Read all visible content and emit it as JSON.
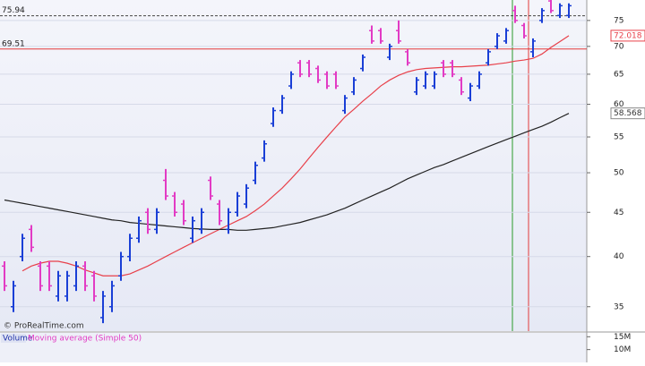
{
  "chart_data": {
    "type": "ohlc",
    "log_scale": true,
    "ylim": [
      32.8,
      79.2
    ],
    "yticks": [
      35,
      40,
      45,
      50,
      55,
      60,
      65,
      70,
      75
    ],
    "bars": [
      [
        39,
        39.5,
        36.5,
        37
      ],
      [
        35,
        37.5,
        34.5,
        37
      ],
      [
        40,
        42.5,
        39.5,
        42
      ],
      [
        43,
        43.5,
        40.5,
        41
      ],
      [
        39,
        39.5,
        36.5,
        37
      ],
      [
        39,
        39.5,
        36.5,
        37
      ],
      [
        36,
        38.5,
        35.5,
        38
      ],
      [
        36,
        38.5,
        35.5,
        38
      ],
      [
        37,
        39.5,
        36.5,
        39
      ],
      [
        39,
        39.5,
        36.5,
        37
      ],
      [
        38,
        38.5,
        35.5,
        36
      ],
      [
        34,
        36.5,
        33.5,
        36
      ],
      [
        35,
        37.5,
        34.5,
        37
      ],
      [
        38,
        40.5,
        37.5,
        40
      ],
      [
        40,
        42.5,
        39.5,
        42
      ],
      [
        42,
        44.5,
        41.5,
        44
      ],
      [
        45,
        45.5,
        42.5,
        43
      ],
      [
        43,
        45.5,
        42.5,
        45
      ],
      [
        49,
        50.5,
        46.5,
        47
      ],
      [
        47,
        47.5,
        44.5,
        45
      ],
      [
        46,
        46.5,
        43.5,
        44
      ],
      [
        42,
        44.5,
        41.5,
        44
      ],
      [
        43,
        45.5,
        42.5,
        45
      ],
      [
        49,
        49.5,
        46.5,
        47
      ],
      [
        46,
        46.5,
        43.5,
        44
      ],
      [
        43,
        45.5,
        42.5,
        45
      ],
      [
        45,
        47.5,
        44.5,
        47
      ],
      [
        46,
        48.5,
        45.5,
        48
      ],
      [
        49,
        51.5,
        48.5,
        51
      ],
      [
        52,
        54.5,
        51.5,
        54
      ],
      [
        57,
        59.5,
        56.5,
        59
      ],
      [
        59,
        61.5,
        58.5,
        61
      ],
      [
        63,
        65.5,
        62.5,
        65
      ],
      [
        67,
        67.5,
        64.5,
        65
      ],
      [
        67,
        67.5,
        64.5,
        65
      ],
      [
        66,
        66.5,
        63.5,
        64
      ],
      [
        65,
        65.5,
        62.5,
        63
      ],
      [
        65,
        65.5,
        62.5,
        63
      ],
      [
        59,
        61.5,
        58.5,
        61
      ],
      [
        62,
        64.5,
        61.5,
        64
      ],
      [
        66,
        68.5,
        65.5,
        68
      ],
      [
        73,
        74,
        70.5,
        71
      ],
      [
        73,
        73.5,
        70.5,
        71
      ],
      [
        68,
        70.5,
        67.5,
        70
      ],
      [
        73,
        75,
        70.5,
        71
      ],
      [
        69,
        69.5,
        66.5,
        67
      ],
      [
        62,
        64.5,
        61.5,
        64
      ],
      [
        63,
        65.5,
        62.5,
        65
      ],
      [
        63,
        65.5,
        62.5,
        65
      ],
      [
        67,
        67.5,
        64.5,
        65
      ],
      [
        67,
        67.5,
        64.5,
        65
      ],
      [
        64,
        64.5,
        61.5,
        62
      ],
      [
        61,
        63.5,
        60.5,
        63
      ],
      [
        63,
        65.5,
        62.5,
        65
      ],
      [
        67,
        69.5,
        66.5,
        69
      ],
      [
        70,
        72.5,
        69.5,
        72
      ],
      [
        71,
        73.5,
        70.5,
        73
      ],
      [
        77,
        78,
        74.5,
        75
      ],
      [
        74,
        74.5,
        71.5,
        72
      ],
      [
        69,
        71.5,
        68,
        71
      ],
      [
        75,
        77.5,
        74.5,
        77
      ],
      [
        79,
        79.5,
        76.5,
        77
      ],
      [
        76,
        78.5,
        75.5,
        78
      ],
      [
        76,
        78.5,
        75.5,
        78
      ]
    ],
    "up_color": "#1a3fd6",
    "down_color": "#e23bc4",
    "series": [
      {
        "color": "#e8404a",
        "values": [
          null,
          null,
          38.5,
          39,
          39.3,
          39.5,
          39.5,
          39.3,
          39,
          38.6,
          38.3,
          38,
          38,
          38,
          38.2,
          38.6,
          39,
          39.5,
          40,
          40.5,
          41,
          41.5,
          42,
          42.5,
          43,
          43.5,
          44,
          44.5,
          45.2,
          46,
          47,
          48,
          49.2,
          50.5,
          52,
          53.5,
          55,
          56.5,
          58,
          59.2,
          60.5,
          61.7,
          63,
          64,
          64.8,
          65.4,
          65.8,
          66,
          66.1,
          66.2,
          66.3,
          66.3,
          66.4,
          66.5,
          66.6,
          66.8,
          67,
          67.3,
          67.5,
          67.8,
          68.6,
          69.8,
          70.9,
          72.018
        ]
      },
      {
        "color": "#222222",
        "values": [
          46.5,
          46.3,
          46.1,
          45.9,
          45.7,
          45.5,
          45.3,
          45.1,
          44.9,
          44.7,
          44.5,
          44.3,
          44.1,
          44,
          43.8,
          43.7,
          43.6,
          43.5,
          43.4,
          43.3,
          43.2,
          43.1,
          43.05,
          43,
          43,
          43,
          42.9,
          42.9,
          43,
          43.1,
          43.2,
          43.4,
          43.6,
          43.8,
          44.1,
          44.4,
          44.7,
          45.1,
          45.5,
          46,
          46.5,
          47,
          47.5,
          48,
          48.6,
          49.2,
          49.7,
          50.2,
          50.7,
          51.1,
          51.6,
          52.1,
          52.6,
          53.1,
          53.6,
          54.1,
          54.6,
          55.1,
          55.6,
          56.1,
          56.6,
          57.2,
          57.9,
          58.568
        ]
      }
    ],
    "levels": [
      {
        "value": 75.94,
        "color": "#444444"
      },
      {
        "value": 69.51,
        "color": "#e23a3a"
      }
    ],
    "watermark": "© ProRealTime.com",
    "volume_panel": {
      "title": "Volume",
      "indicator": "Moving average (Simple 50)",
      "ylim": [
        5000000,
        16500000
      ],
      "yticks": [
        {
          "value": 15000000,
          "label": "15M"
        },
        {
          "value": 10000000,
          "label": "10M"
        }
      ]
    }
  }
}
